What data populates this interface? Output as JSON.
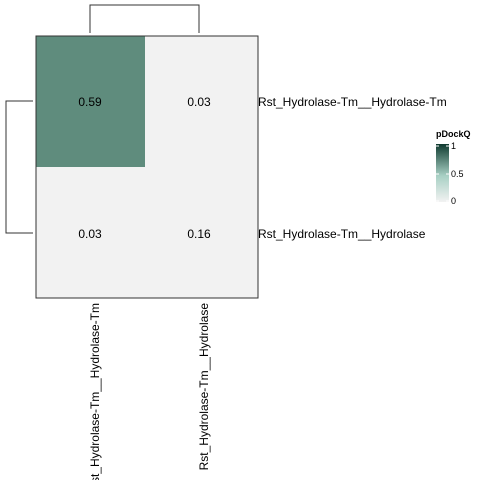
{
  "chart_data": {
    "type": "heatmap",
    "rows": [
      "Rst_Hydrolase-Tm__Hydrolase-Tm",
      "Rst_Hydrolase-Tm__Hydrolase"
    ],
    "columns": [
      "Rst_Hydrolase-Tm__Hydrolase-Tm",
      "Rst_Hydrolase-Tm__Hydrolase"
    ],
    "values": [
      [
        0.59,
        0.03
      ],
      [
        0.03,
        0.16
      ]
    ],
    "value_labels": [
      [
        "0.59",
        "0.03"
      ],
      [
        "0.03",
        "0.16"
      ]
    ],
    "legend": {
      "title": "pDockQ",
      "range": [
        0,
        1
      ],
      "ticks": [
        0,
        0.5,
        1
      ],
      "tick_labels": [
        "0",
        "0.5",
        "1"
      ],
      "placement": "right"
    },
    "color_scale": {
      "low": "#f2f2f2",
      "mid": "#a8d0c4",
      "high": "#0f3a2f"
    },
    "highlight_color": "#5f8c7d",
    "background_color": "#f2f2f2",
    "row_dendrogram": true,
    "column_dendrogram": true,
    "grid": false
  }
}
